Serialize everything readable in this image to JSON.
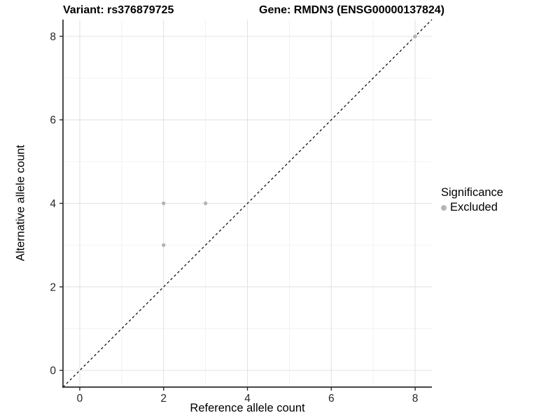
{
  "header": {
    "title_left": "Variant: rs376879725",
    "title_right": "Gene: RMDN3 (ENSG00000137824)"
  },
  "legend": {
    "title": "Significance",
    "entries": [
      {
        "label": "Excluded",
        "color": "#b5b5b5"
      }
    ]
  },
  "chart_data": {
    "type": "scatter",
    "title_left": "Variant: rs376879725",
    "title_right": "Gene: RMDN3 (ENSG00000137824)",
    "xlabel": "Reference allele count",
    "ylabel": "Alternative allele count",
    "xlim": [
      -0.4,
      8.4
    ],
    "ylim": [
      -0.4,
      8.4
    ],
    "x_ticks": [
      0,
      2,
      4,
      6,
      8
    ],
    "y_ticks": [
      0,
      2,
      4,
      6,
      8
    ],
    "x_minor_ticks": [
      1,
      3,
      5,
      7
    ],
    "y_minor_ticks": [
      1,
      3,
      5,
      7
    ],
    "grid": true,
    "legend_position": "right",
    "identity_line": {
      "from": [
        -0.4,
        -0.4
      ],
      "to": [
        8.4,
        8.4
      ],
      "style": "dashed",
      "color": "#000000"
    },
    "series": [
      {
        "name": "Excluded",
        "color": "#b5b5b5",
        "points": [
          [
            2,
            3
          ],
          [
            2,
            4
          ],
          [
            3,
            4
          ],
          [
            8,
            8
          ]
        ]
      }
    ],
    "style": {
      "grid_major_color": "#e3e3e3",
      "grid_minor_color": "#efefef",
      "axis_line_color": "#2b2b2b",
      "tick_label_color": "#262626",
      "point_color": "#b5b5b5"
    }
  }
}
